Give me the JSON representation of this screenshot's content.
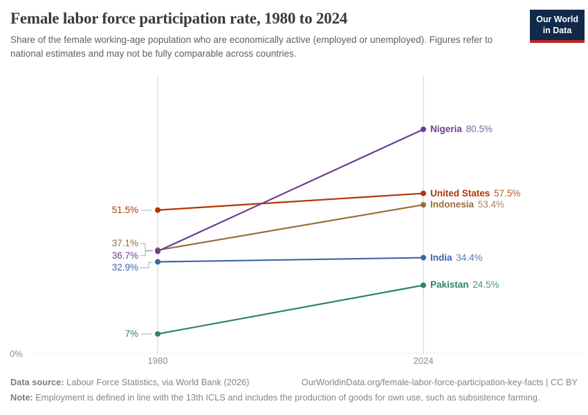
{
  "header": {
    "title": "Female labor force participation rate, 1980 to 2024",
    "subtitle": "Share of the female working-age population who are economically active (employed or unemployed). Figures refer to national estimates and may not be fully comparable across countries.",
    "logo_line1": "Our World",
    "logo_line2": "in Data"
  },
  "chart_data": {
    "type": "line",
    "variant": "slope",
    "title": "Female labor force participation rate, 1980 to 2024",
    "x": [
      1980,
      2024
    ],
    "x_ticks": [
      "1980",
      "2024"
    ],
    "y_zero_tick": "0%",
    "ylim": [
      0,
      100
    ],
    "grid": "zero-line-only",
    "legend_position": "end-of-line-labels",
    "series": [
      {
        "name": "Nigeria",
        "color": "#6D3E91",
        "values": [
          36.7,
          80.5
        ],
        "start_label": "36.7%",
        "end_label": "80.5%"
      },
      {
        "name": "United States",
        "color": "#B13507",
        "values": [
          51.5,
          57.5
        ],
        "start_label": "51.5%",
        "end_label": "57.5%"
      },
      {
        "name": "Indonesia",
        "color": "#996D39",
        "values": [
          37.1,
          53.4
        ],
        "start_label": "37.1%",
        "end_label": "53.4%"
      },
      {
        "name": "India",
        "color": "#3D64A8",
        "values": [
          32.9,
          34.4
        ],
        "start_label": "32.9%",
        "end_label": "34.4%"
      },
      {
        "name": "Pakistan",
        "color": "#2C8465",
        "values": [
          7.0,
          24.5
        ],
        "start_label": "7%",
        "end_label": "24.5%"
      }
    ]
  },
  "colors": {
    "axis": "#cfcfcf",
    "zero_line": "#d8d8d8",
    "tick_text": "#8c8c8c",
    "connector": "#b8b8b8",
    "logo_bg": "#102a4a",
    "logo_accent": "#c22626"
  },
  "footer": {
    "data_source_label": "Data source:",
    "data_source_text": "Labour Force Statistics, via World Bank (2026)",
    "url_text": "OurWorldinData.org/female-labor-force-participation-key-facts | CC BY",
    "note_label": "Note:",
    "note_text": "Employment is defined in line with the 13th ICLS and includes the production of goods for own use, such as subsistence farming."
  }
}
